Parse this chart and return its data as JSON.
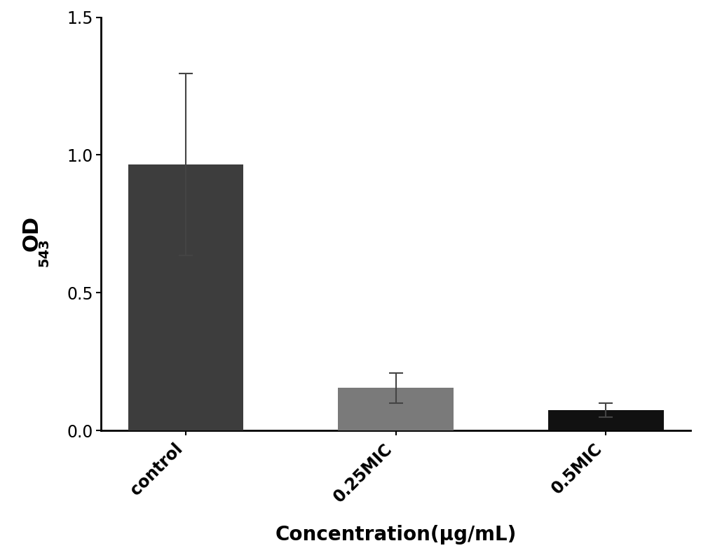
{
  "categories": [
    "control",
    "0.25MIC",
    "0.5MIC"
  ],
  "values": [
    0.965,
    0.155,
    0.075
  ],
  "errors_upper": [
    0.33,
    0.055,
    0.025
  ],
  "errors_lower": [
    0.33,
    0.055,
    0.025
  ],
  "bar_colors": [
    "#3d3d3d",
    "#7a7a7a",
    "#111111"
  ],
  "bar_width": 0.55,
  "ylim": [
    0.0,
    1.5
  ],
  "yticks": [
    0.0,
    0.5,
    1.0,
    1.5
  ],
  "xlabel": "Concentration(μg/mL)",
  "xlabel_fontsize": 20,
  "ylabel_fontsize": 22,
  "tick_fontsize": 17,
  "background_color": "#ffffff",
  "error_capsize": 7,
  "error_linewidth": 1.5,
  "error_color": "#444444",
  "spine_linewidth": 2.0
}
